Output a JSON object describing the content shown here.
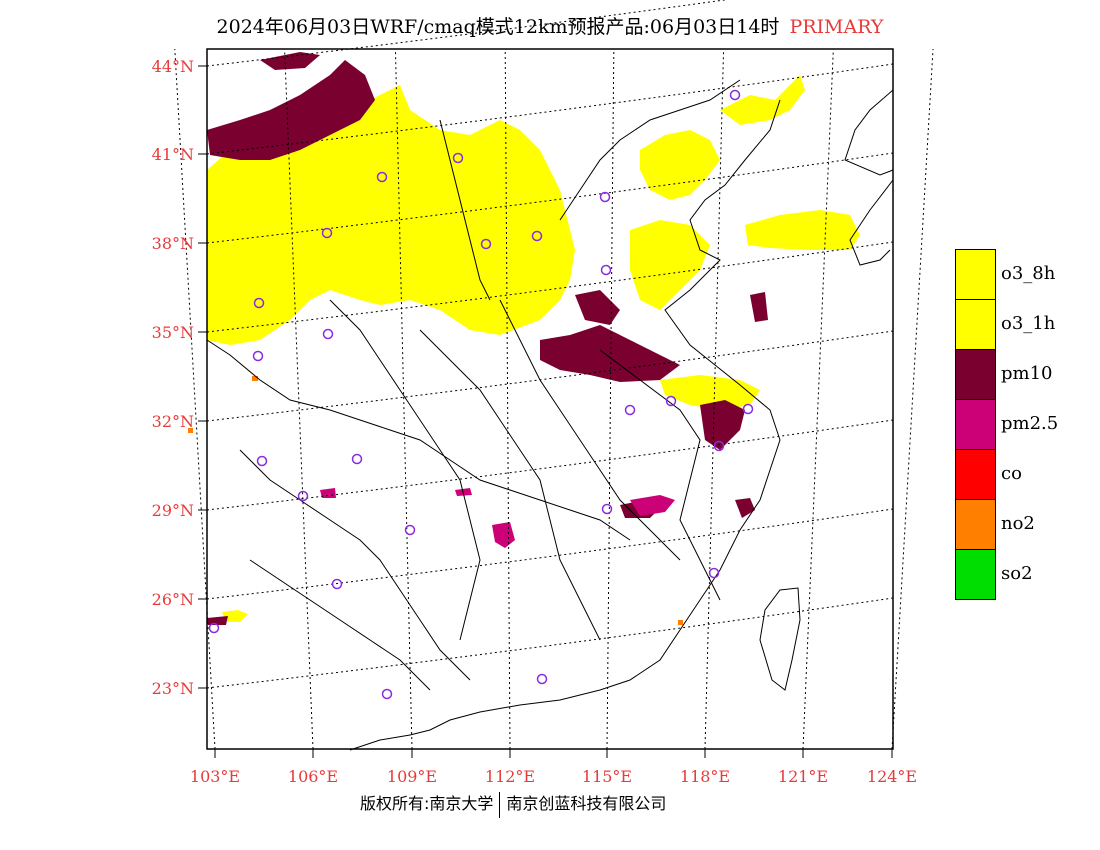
{
  "title": {
    "main": "2024年06月03日WRF/cmaq模式12km预报产品:06月03日14时",
    "tag": "PRIMARY"
  },
  "axes": {
    "lat_labels": [
      "44°N",
      "41°N",
      "38°N",
      "35°N",
      "32°N",
      "29°N",
      "26°N",
      "23°N"
    ],
    "lon_labels": [
      "103°E",
      "106°E",
      "109°E",
      "112°E",
      "115°E",
      "118°E",
      "121°E",
      "124°E"
    ],
    "label_color": "#e83a3a"
  },
  "legend": [
    {
      "label": "o3_8h",
      "color": "#ffff00"
    },
    {
      "label": "o3_1h",
      "color": "#ffff00"
    },
    {
      "label": "pm10",
      "color": "#7a0030"
    },
    {
      "label": "pm2.5",
      "color": "#cc0077"
    },
    {
      "label": "co",
      "color": "#ff0000"
    },
    {
      "label": "no2",
      "color": "#ff7f00"
    },
    {
      "label": "so2",
      "color": "#00dd00"
    }
  ],
  "footer": {
    "left": "版权所有:南京大学",
    "right": "南京创蓝科技有限公司"
  },
  "colors": {
    "o3": "#ffff00",
    "pm10": "#7a0030",
    "pm25": "#cc0077",
    "no2": "#ff7f00",
    "station": "#8a2be2"
  }
}
